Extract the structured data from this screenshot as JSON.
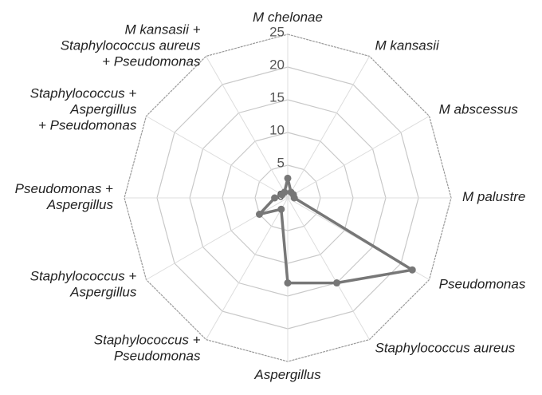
{
  "chart_data": {
    "type": "radar",
    "categories": [
      [
        "M chelonae"
      ],
      [
        "M kansasii"
      ],
      [
        "M abscessus"
      ],
      [
        "M palustre"
      ],
      [
        "Pseudomonas"
      ],
      [
        "Staphylococcus aureus"
      ],
      [
        "Aspergillus"
      ],
      [
        "Staphylococcus +",
        "Pseudomonas"
      ],
      [
        "Staphylococcus +",
        "Aspergillus"
      ],
      [
        "Pseudomonas +",
        "Aspergillus"
      ],
      [
        "Staphylococcus +",
        "Aspergillus",
        "+ Pseudomonas"
      ],
      [
        "M kansasii +",
        "Staphylococcus aureus",
        "+ Pseudomonas"
      ]
    ],
    "values": [
      3,
      1,
      1,
      1,
      22,
      15,
      13,
      2,
      5,
      2,
      1,
      1
    ],
    "color": "#777777",
    "ylim": [
      0,
      25
    ],
    "yticks": [
      0,
      5,
      10,
      15,
      20,
      25
    ],
    "grid": true
  }
}
